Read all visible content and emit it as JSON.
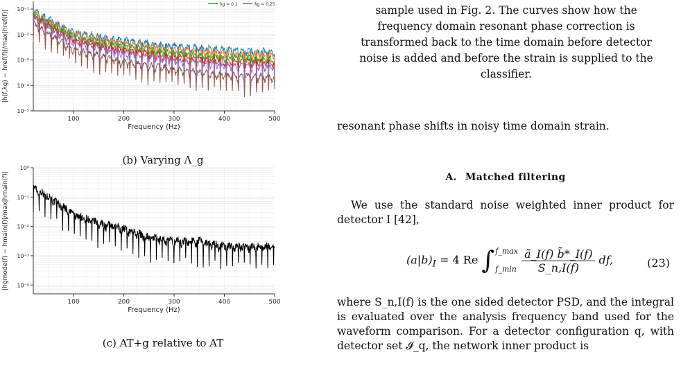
{
  "figure_b": {
    "caption": "(b) Varying Λ_g",
    "ylabel": "|h(f,λg) − href(f)|/max|href(f)|",
    "xlabel": "Frequency (Hz)",
    "y_ticks": [
      "10⁻¹",
      "10⁻²",
      "10⁻³",
      "10⁻⁴",
      "10⁻⁵"
    ],
    "x_ticks": [
      "100",
      "200",
      "300",
      "400",
      "500"
    ],
    "legend": [
      {
        "label": "λg = 0.1",
        "color": "#2ca02c"
      },
      {
        "label": "λg = 0.25",
        "color": "#8c564b"
      }
    ],
    "colors": [
      "#1f77b4",
      "#ff7f0e",
      "#2ca02c",
      "#d62728",
      "#9467bd",
      "#8c564b"
    ]
  },
  "figure_c": {
    "caption": "(c) AT+g relative to AT",
    "ylabel": "|hgmode(f) − hmain(f)|/max|hmain(f)|",
    "xlabel": "Frequency (Hz)",
    "y_ticks": [
      "10⁰",
      "10⁻¹",
      "10⁻²",
      "10⁻³",
      "10⁻⁴"
    ],
    "x_ticks": [
      "100",
      "200",
      "300",
      "400",
      "500"
    ],
    "color": "#000000"
  },
  "chart_data": [
    {
      "type": "line",
      "xlabel": "Frequency (Hz)",
      "ylabel": "|h(f,λg) − href(f)|/max|href(f)|",
      "x_range": [
        20,
        500
      ],
      "ylim": [
        1e-05,
        0.2
      ],
      "log_y": true,
      "grid": true,
      "legend_position": "top-right",
      "series": [
        {
          "name": "λg = 0.1",
          "x": [
            20,
            100,
            200,
            300,
            400,
            500
          ],
          "values": [
            0.1,
            0.015,
            0.007,
            0.004,
            0.003,
            0.0025
          ]
        },
        {
          "name": "λg = 0.25",
          "x": [
            20,
            100,
            200,
            300,
            400,
            500
          ],
          "values": [
            0.03,
            0.003,
            0.001,
            0.0005,
            0.0003,
            0.00025
          ]
        }
      ]
    },
    {
      "type": "line",
      "xlabel": "Frequency (Hz)",
      "ylabel": "|hgmode(f) − hmain(f)|/max|hmain(f)|",
      "x_range": [
        20,
        500
      ],
      "ylim": [
        5e-05,
        1
      ],
      "log_y": true,
      "grid": true,
      "series": [
        {
          "x": [
            20,
            50,
            100,
            150,
            200,
            250,
            300,
            350,
            400,
            450,
            500
          ],
          "values": [
            0.2,
            0.1,
            0.025,
            0.012,
            0.008,
            0.004,
            0.003,
            0.003,
            0.002,
            0.002,
            0.002
          ]
        }
      ]
    }
  ],
  "right": {
    "fig_caption_lines": [
      "sample used in Fig. 2. The curves show how the",
      "frequency domain resonant phase correction is",
      "transformed back to the time domain before detector",
      "noise is added and before the strain is supplied to the",
      "classifier."
    ],
    "p1": "resonant phase shifts in noisy time domain strain.",
    "section_num": "A.",
    "section_title": "Matched filtering",
    "p2": "We use the standard noise weighted inner product for detector I [42],",
    "eq_lhs": "(a|b)",
    "eq_sub": "I",
    "eq_mid": "= 4 Re",
    "eq_upper": "f_max",
    "eq_lower": "f_min",
    "eq_numerator": "ã_I(f) b̃*_I(f)",
    "eq_denominator": "S_n,I(f)",
    "eq_tail": "df,",
    "eq_number": "(23)",
    "p3": "where S_n,I(f) is the one sided detector PSD, and the integral is evaluated over the analysis frequency band used for the waveform comparison. For a detector configuration q, with detector set 𝓘_q, the network inner product is"
  }
}
